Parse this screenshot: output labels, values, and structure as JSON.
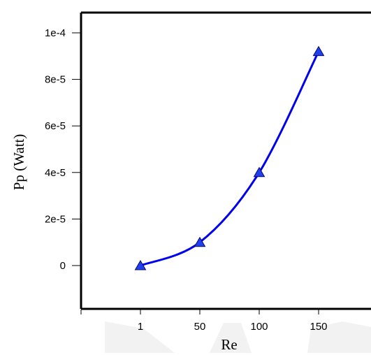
{
  "colors": {
    "series": "#0000ee",
    "marker_fill": "#1f3ff0",
    "marker_stroke": "#0a0a60",
    "axis": "#000000",
    "watermark": "#f2f2f2"
  },
  "chart_data": {
    "type": "line",
    "title": "",
    "xlabel": "Re",
    "ylabel": "Pp (Watt)",
    "x": [
      1,
      50,
      100,
      150
    ],
    "xtick_labels": [
      "1",
      "50",
      "100",
      "150"
    ],
    "ytick_values": [
      0,
      2e-05,
      4e-05,
      6e-05,
      8e-05,
      0.0001
    ],
    "ytick_labels": [
      "0",
      "2e-5",
      "4e-5",
      "6e-5",
      "8e-5",
      "1e-4"
    ],
    "ylim": [
      -1.7e-05,
      0.0001
    ],
    "grid": false,
    "legend": "none",
    "marker": "triangle",
    "line_style": "smooth",
    "series": [
      {
        "values": [
          0,
          1e-05,
          4e-05,
          9.2e-05
        ]
      }
    ]
  }
}
